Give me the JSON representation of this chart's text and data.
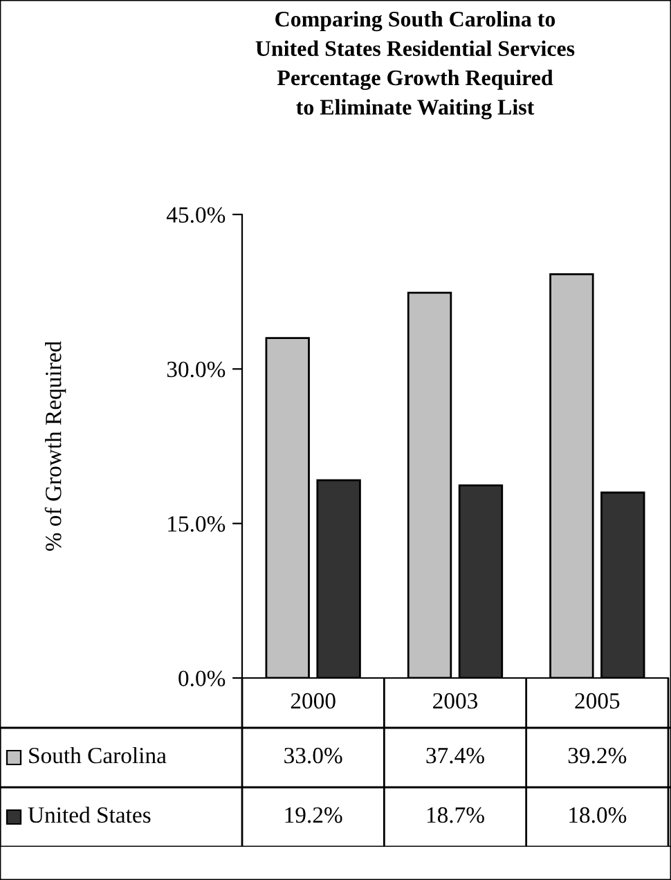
{
  "chart_data": {
    "type": "bar",
    "title": "Comparing South Carolina to\nUnited States Residential Services\nPercentage Growth Required\nto Eliminate Waiting List",
    "ylabel": "% of Growth Required",
    "categories": [
      "2000",
      "2003",
      "2005"
    ],
    "series": [
      {
        "name": "South Carolina",
        "color": "#c0c0c0",
        "values": [
          33.0,
          37.4,
          39.2
        ],
        "value_labels": [
          "33.0%",
          "37.4%",
          "39.2%"
        ]
      },
      {
        "name": "United States",
        "color": "#333333",
        "values": [
          19.2,
          18.7,
          18.0
        ],
        "value_labels": [
          "19.2%",
          "18.7%",
          "18.0%"
        ]
      }
    ],
    "ylim": [
      0,
      45
    ],
    "yticks": [
      {
        "value": 0,
        "label": "0.0%"
      },
      {
        "value": 15,
        "label": "15.0%"
      },
      {
        "value": 30,
        "label": "30.0%"
      },
      {
        "value": 45,
        "label": "45.0%"
      }
    ],
    "legend": "bottom",
    "grid": false
  }
}
